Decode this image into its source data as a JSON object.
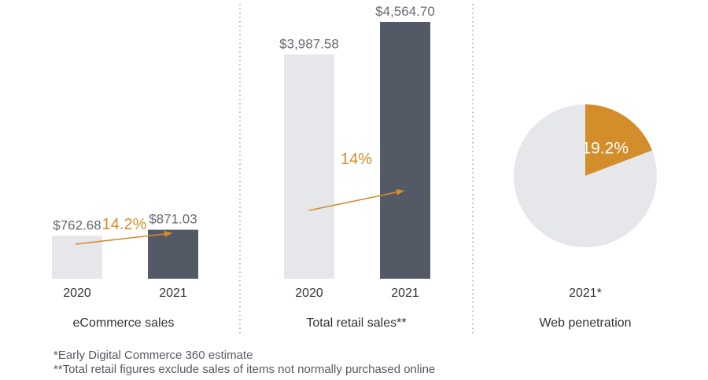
{
  "colors": {
    "bar_2020": "#e5e7ea",
    "bar_2021": "#545a65",
    "accent": "#d38d2b",
    "pie_rest": "#e5e7ea",
    "divider": "#8a8f96",
    "text": "#2f3338",
    "value_text": "#666b72"
  },
  "chart_data": [
    {
      "type": "bar",
      "title": "eCommerce sales",
      "categories": [
        "2020",
        "2021"
      ],
      "values": [
        762.68,
        871.03
      ],
      "value_labels": [
        "$762.68",
        "$871.03"
      ],
      "growth_label": "14.2%",
      "ylim": [
        0,
        4564.7
      ]
    },
    {
      "type": "bar",
      "title": "Total retail sales**",
      "categories": [
        "2020",
        "2021"
      ],
      "values": [
        3987.58,
        4564.7
      ],
      "value_labels": [
        "$3,987.58",
        "$4,564.70"
      ],
      "growth_label": "14%",
      "ylim": [
        0,
        4564.7
      ]
    },
    {
      "type": "pie",
      "title": "Web penetration",
      "category": "2021*",
      "slices": [
        {
          "value": 19.2,
          "label": "19.2%"
        },
        {
          "value": 80.8,
          "label": ""
        }
      ]
    }
  ],
  "footnotes": [
    "*Early Digital Commerce 360 estimate",
    "**Total retail figures exclude sales of items not normally purchased online"
  ]
}
